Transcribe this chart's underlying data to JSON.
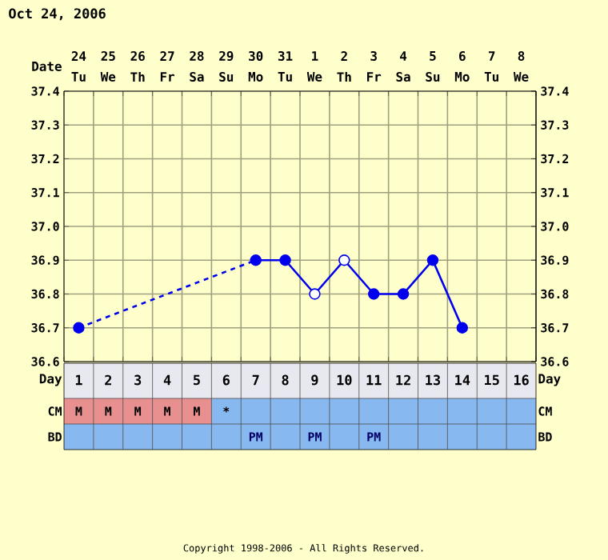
{
  "chart_data": {
    "type": "line",
    "title": "Oct 24, 2006",
    "xlabel": "Day",
    "categories": [
      "1",
      "2",
      "3",
      "4",
      "5",
      "6",
      "7",
      "8",
      "9",
      "10",
      "11",
      "12",
      "13",
      "14",
      "15",
      "16"
    ],
    "ylim": [
      36.6,
      37.4
    ],
    "yticks": [
      36.6,
      36.7,
      36.8,
      36.9,
      {
        "value": 37,
        "label": "37.0"
      },
      37.1,
      37.2,
      37.3,
      37.4
    ],
    "y2lim": [
      36.6,
      37.4
    ],
    "y2ticks": [
      36.6,
      36.7,
      36.8,
      36.9,
      {
        "value": 37,
        "label": "37.0"
      },
      37.1,
      37.2,
      37.3,
      37.4
    ],
    "grid": true,
    "marker": "circle",
    "series": [
      {
        "color": "#0000ee",
        "line_style": "dashed",
        "marker": "none",
        "values": [
          36.7,
          null,
          null,
          null,
          null,
          null,
          36.9,
          null,
          null,
          null,
          null,
          null,
          null,
          null,
          null,
          null
        ]
      },
      {
        "color": "#0000ee",
        "line_style": "solid",
        "colors": [
          "#0000ee",
          "#0000ee",
          "#0000ee",
          "#0000ee",
          "#0000ee",
          "#0000ee",
          "#0000ee",
          "#0000ee",
          "#ffffff",
          "#ffffff",
          "#0000ee",
          "#0000ee",
          "#0000ee",
          "#0000ee",
          "#0000ee",
          "#0000ee"
        ],
        "values": [
          36.7,
          null,
          null,
          null,
          null,
          null,
          36.9,
          36.9,
          36.8,
          36.9,
          36.8,
          36.8,
          36.9,
          36.7,
          null,
          null
        ]
      }
    ],
    "annotations": [
      "24",
      "25",
      "26",
      "27",
      "28",
      "29",
      "30",
      "31",
      "1",
      "2",
      "3",
      "4",
      "5",
      "6",
      "7",
      "8",
      "Tu",
      "We",
      "Th",
      "Fr",
      "Sa",
      "Su",
      "Mo",
      "Tu",
      "We",
      "Th",
      "Fr",
      "Sa",
      "Su",
      "Mo",
      "Tu",
      "We",
      "CM",
      "CM",
      "BD",
      "BD",
      "Day",
      "Copyright 1998-2006 - All Rights Reserved.",
      "Date",
      "M",
      "M",
      "M",
      "M",
      "M",
      "*",
      "PM",
      "PM",
      "PM"
    ]
  }
}
